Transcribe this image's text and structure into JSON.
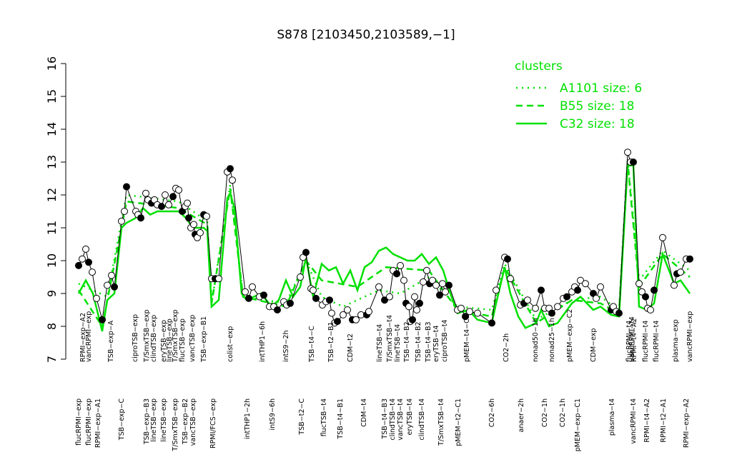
{
  "chart_data": {
    "type": "line",
    "title": "S878 [2103450,2103589,−1]",
    "ylim": [
      7,
      16
    ],
    "yticks": [
      7,
      8,
      9,
      10,
      11,
      12,
      13,
      14,
      15,
      16
    ],
    "xlim": [
      100,
      975
    ],
    "legend_title": "clusters",
    "legend_position": "top-right",
    "data_series": {
      "color": "#000000",
      "x": [
        110,
        115,
        120,
        124,
        129,
        135,
        143,
        150,
        156,
        160,
        170,
        174,
        177,
        190,
        193,
        197,
        204,
        207,
        212,
        216,
        220,
        226,
        231,
        236,
        242,
        246,
        250,
        255,
        259,
        262,
        264,
        267,
        271,
        273,
        276,
        280,
        285,
        289,
        296,
        301,
        306,
        318,
        322,
        325,
        343,
        348,
        353,
        363,
        369,
        377,
        383,
        388,
        397,
        401,
        406,
        420,
        424,
        428,
        435,
        438,
        442,
        451,
        456,
        461,
        464,
        468,
        472,
        480,
        486,
        493,
        498,
        505,
        513,
        516,
        530,
        538,
        545,
        550,
        555,
        560,
        565,
        568,
        572,
        574,
        577,
        580,
        583,
        587,
        592,
        597,
        601,
        605,
        610,
        615,
        619,
        623,
        628,
        640,
        645,
        651,
        657,
        668,
        688,
        694,
        706,
        710,
        714,
        728,
        733,
        738,
        749,
        757,
        762,
        768,
        772,
        780,
        788,
        793,
        800,
        804,
        808,
        812,
        819,
        830,
        834,
        840,
        855,
        858,
        862,
        866,
        878,
        882,
        886,
        894,
        898,
        903,
        906,
        910,
        915,
        927,
        943,
        947,
        952,
        960,
        965
      ],
      "values": [
        9.85,
        10.05,
        10.35,
        9.95,
        9.65,
        8.85,
        8.2,
        9.25,
        9.55,
        9.2,
        11.2,
        11.5,
        12.25,
        11.5,
        11.4,
        11.3,
        12.05,
        11.85,
        11.75,
        11.85,
        11.7,
        11.65,
        12.0,
        11.7,
        11.95,
        12.2,
        12.15,
        11.5,
        11.65,
        11.75,
        11.3,
        11.0,
        11.1,
        10.8,
        10.7,
        10.85,
        11.4,
        11.35,
        9.45,
        9.45,
        9.45,
        12.7,
        12.8,
        12.45,
        9.05,
        8.85,
        9.2,
        8.9,
        8.95,
        8.6,
        8.6,
        8.5,
        8.75,
        8.65,
        8.7,
        9.5,
        10.1,
        10.25,
        9.15,
        9.1,
        8.85,
        8.65,
        8.75,
        8.8,
        8.4,
        8.1,
        8.15,
        8.35,
        8.5,
        8.2,
        8.2,
        8.35,
        8.35,
        8.45,
        9.2,
        8.8,
        8.9,
        9.7,
        9.6,
        9.85,
        9.4,
        8.7,
        8.6,
        8.15,
        8.2,
        8.9,
        8.5,
        8.7,
        9.35,
        9.7,
        9.3,
        9.4,
        9.25,
        8.95,
        9.3,
        9.05,
        9.25,
        8.5,
        8.55,
        8.3,
        8.45,
        8.4,
        8.1,
        9.1,
        10.1,
        10.05,
        9.45,
        8.65,
        8.7,
        8.8,
        8.55,
        9.1,
        8.55,
        8.55,
        8.4,
        8.6,
        8.85,
        8.9,
        9.05,
        9.2,
        9.1,
        9.4,
        9.3,
        9.0,
        8.85,
        9.2,
        8.5,
        8.6,
        8.45,
        8.4,
        13.3,
        13.0,
        13.0,
        9.3,
        9.05,
        8.9,
        8.55,
        8.5,
        9.1,
        10.7,
        9.25,
        9.6,
        9.65,
        10.05,
        10.05
      ]
    },
    "series": [
      {
        "name": "A1101 size: 6",
        "color": "#00e000",
        "dash": "dotted",
        "x": [
          110,
          150,
          177,
          250,
          290,
          296,
          322,
          340,
          400,
          428,
          450,
          480,
          530,
          560,
          600,
          640,
          688,
          706,
          750,
          800,
          840,
          866,
          878,
          894,
          927,
          965
        ],
        "values": [
          9.3,
          8.9,
          12.0,
          11.8,
          11.2,
          8.7,
          12.3,
          8.9,
          8.7,
          10.0,
          8.9,
          8.6,
          9.1,
          9.0,
          9.5,
          8.6,
          8.5,
          9.9,
          8.2,
          8.8,
          8.9,
          8.5,
          13.1,
          9.4,
          10.3,
          9.7
        ]
      },
      {
        "name": "B55 size: 18",
        "color": "#00e000",
        "dash": "dashed",
        "x": [
          110,
          143,
          177,
          250,
          290,
          296,
          322,
          340,
          400,
          428,
          450,
          500,
          540,
          600,
          640,
          688,
          706,
          750,
          800,
          840,
          866,
          878,
          894,
          927,
          965
        ],
        "values": [
          9.1,
          8.0,
          11.8,
          11.6,
          11.1,
          8.7,
          12.2,
          8.9,
          8.6,
          10.0,
          9.4,
          9.2,
          9.8,
          9.7,
          8.5,
          8.3,
          9.8,
          8.1,
          8.8,
          8.7,
          8.4,
          13.0,
          9.2,
          10.2,
          9.5
        ]
      },
      {
        "name": "C32 size: 18",
        "color": "#00e000",
        "dash": "solid",
        "x": [
          110,
          120,
          130,
          143,
          150,
          160,
          170,
          177,
          190,
          200,
          210,
          220,
          230,
          240,
          250,
          260,
          270,
          285,
          290,
          296,
          306,
          318,
          322,
          328,
          338,
          345,
          355,
          365,
          380,
          390,
          400,
          410,
          420,
          428,
          438,
          450,
          460,
          470,
          480,
          490,
          500,
          510,
          520,
          530,
          540,
          550,
          560,
          570,
          580,
          590,
          600,
          610,
          620,
          630,
          640,
          655,
          668,
          688,
          694,
          706,
          714,
          725,
          735,
          750,
          757,
          768,
          780,
          790,
          800,
          812,
          830,
          840,
          855,
          866,
          878,
          886,
          894,
          905,
          915,
          927,
          943,
          952,
          965
        ],
        "values": [
          9.0,
          9.4,
          9.0,
          7.85,
          8.8,
          9.0,
          11.0,
          11.15,
          11.3,
          11.6,
          11.4,
          11.5,
          11.5,
          11.5,
          11.5,
          11.3,
          11.0,
          11.0,
          10.9,
          8.6,
          8.8,
          11.9,
          12.05,
          11.6,
          9.0,
          8.8,
          8.9,
          9.0,
          8.6,
          8.8,
          9.4,
          8.9,
          9.2,
          10.1,
          8.9,
          9.9,
          9.7,
          9.8,
          9.3,
          9.7,
          9.1,
          9.8,
          9.95,
          10.3,
          10.4,
          10.2,
          10.1,
          10.0,
          10.0,
          10.2,
          9.9,
          10.1,
          9.7,
          9.0,
          8.4,
          8.5,
          8.2,
          8.1,
          8.7,
          9.8,
          9.0,
          8.3,
          7.95,
          8.1,
          8.5,
          8.0,
          8.1,
          8.4,
          8.7,
          8.9,
          8.5,
          8.6,
          8.35,
          8.3,
          12.9,
          12.9,
          8.6,
          8.5,
          8.7,
          10.2,
          9.3,
          9.4,
          9.0
        ]
      }
    ],
    "top_labels": {
      "x": [
        116,
        124,
        155,
        189,
        205,
        215,
        229,
        237,
        245,
        255,
        269,
        285,
        322,
        367,
        400,
        436,
        463,
        490,
        531,
        545,
        556,
        569,
        585,
        599,
        610,
        622,
        653,
        708,
        749,
        772,
        797,
        830,
        880,
        884,
        887,
        903,
        918,
        945,
        965
      ],
      "labels": [
        "RPMI−exp−A2",
        "vancRPMI−exp",
        "TSB−exp−A",
        "ciproTSB−exp",
        "T/SmxTSB−exp",
        "clindTSB−exp",
        "eryTSB−exp",
        "lineTSB−exp",
        "T/SmxTSB−exp",
        "flucTSB−exp",
        "vancTSB−exp",
        "TSB−exp−B1",
        "colist−exp",
        "intTHP1−6h",
        "intS9−2h",
        "TSB−t4−C",
        "TSB−t2−B1",
        "CDM−t2",
        "lineTSB−t4",
        "T/SmxTSB−t4",
        "lineTSB−t4",
        "TSB−t4−B2",
        "TSB−t4−B2",
        "TSB−t4−B3",
        "eryTSB−t4",
        "ciproTSB−t4",
        "pMEM−t4−C1",
        "CO2−2h",
        "nonad50−1h",
        "nonad25−1h",
        "pMEM−exp−C2",
        "CDM−exp",
        "flucRPMI−t4",
        "vancRPMI−t4",
        "RPMI−t4−A2",
        "flucRPMI−t4",
        "flucRPMI−t4",
        "plasma−exp",
        "vancRPMI−exp"
      ]
    },
    "bottom_labels": {
      "x": [
        110,
        124,
        137,
        170,
        205,
        215,
        229,
        245,
        259,
        270,
        298,
        346,
        381,
        422,
        453,
        476,
        509,
        538,
        549,
        560,
        573,
        590,
        617,
        641,
        688,
        729,
        762,
        787,
        808,
        856,
        886,
        905,
        928,
        960
      ],
      "labels": [
        "flucRPMI−exp",
        "flucRPMI−exp",
        "RPMI−exp−A1",
        "TSB−exp−C",
        "TSB−exp−B3",
        "lineTSB−exp",
        "lineTSB−exp",
        "T/SmxTSB−exp",
        "TSB−exp−B2",
        "vancTSB−exp",
        "RPMI/FCS−exp",
        "intTHP1−2h",
        "intS9−6h",
        "TSB−t2−C",
        "flucTSB−t4",
        "TSB−t4−B1",
        "CDM−t4",
        "TSB−t4−B3",
        "clindTSB−t4",
        "vancTSB−t4",
        "eryTSB−t4",
        "clindTSB−t4",
        "T/SmxTSB−t4",
        "pMEM−t2−C1",
        "CO2−6h",
        "anaer−2h",
        "CO2−1h",
        "CO2−1h",
        "pMEM−exp−C1",
        "plasma−t4",
        "vancRPMI−t4",
        "RPMI−t4−A2",
        "RPMI−t2−A1",
        "RPMI−exp−A2"
      ]
    }
  }
}
